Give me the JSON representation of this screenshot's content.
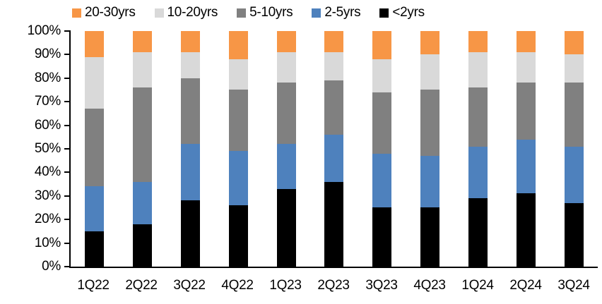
{
  "chart_data": {
    "type": "bar",
    "subtype": "stacked-100-percent",
    "title": "",
    "xlabel": "",
    "ylabel": "",
    "ylim": [
      0,
      100
    ],
    "ytick_step": 10,
    "ytick_labels": [
      "100%",
      "90%",
      "80%",
      "70%",
      "60%",
      "50%",
      "40%",
      "30%",
      "20%",
      "10%",
      "0%"
    ],
    "grid": false,
    "legend_position": "top",
    "legend_order": [
      "20-30yrs",
      "10-20yrs",
      "5-10yrs",
      "2-5yrs",
      "<2yrs"
    ],
    "categories": [
      "1Q22",
      "2Q22",
      "3Q22",
      "4Q22",
      "1Q23",
      "2Q23",
      "3Q23",
      "4Q23",
      "1Q24",
      "2Q24",
      "3Q24"
    ],
    "series": [
      {
        "name": "<2yrs",
        "color": "#000000",
        "values": [
          15,
          18,
          28,
          26,
          33,
          36,
          25,
          25,
          29,
          31,
          27
        ]
      },
      {
        "name": "2-5yrs",
        "color": "#4E81BD",
        "values": [
          19,
          18,
          24,
          23,
          19,
          20,
          23,
          22,
          22,
          23,
          24
        ]
      },
      {
        "name": "5-10yrs",
        "color": "#808080",
        "values": [
          33,
          40,
          28,
          26,
          26,
          23,
          26,
          28,
          25,
          24,
          27
        ]
      },
      {
        "name": "10-20yrs",
        "color": "#D9D9D9",
        "values": [
          22,
          15,
          11,
          13,
          13,
          12,
          14,
          15,
          15,
          13,
          12
        ]
      },
      {
        "name": "20-30yrs",
        "color": "#F79646",
        "values": [
          11,
          9,
          9,
          12,
          9,
          9,
          12,
          10,
          9,
          9,
          10
        ]
      }
    ],
    "axis_color": "#000000"
  }
}
